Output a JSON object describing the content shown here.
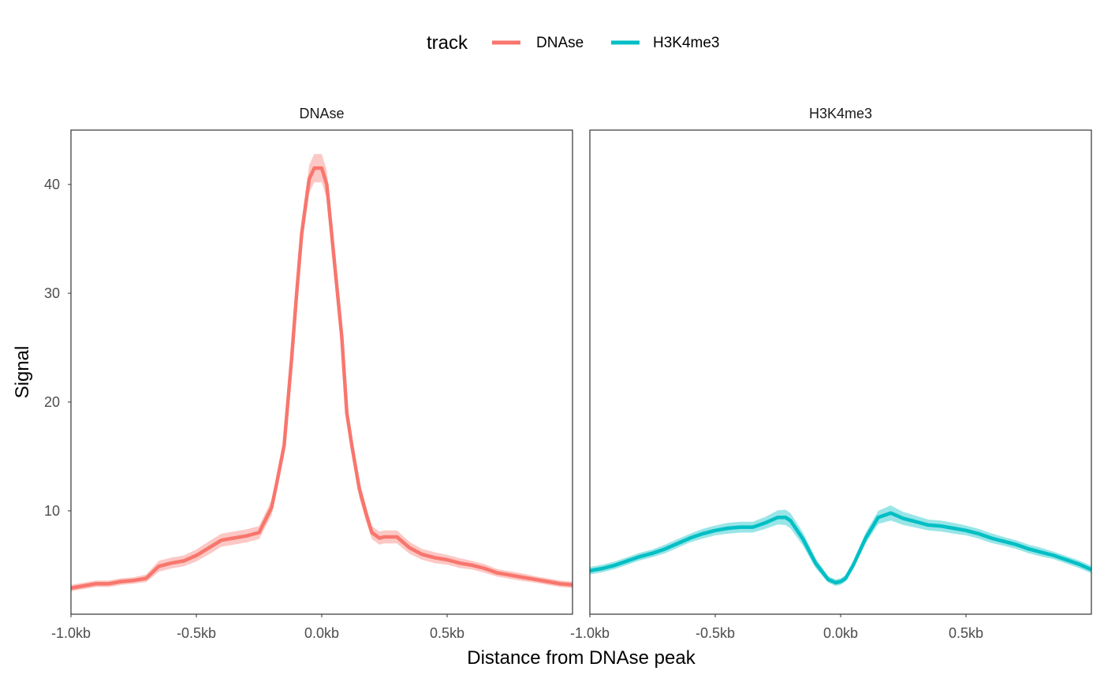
{
  "chart_data": {
    "type": "line",
    "xlabel": "Distance from DNAse peak",
    "ylabel": "Signal",
    "xlim": [
      -1.0,
      1.0
    ],
    "ylim": [
      0.5,
      45
    ],
    "x_ticks": [
      {
        "value": -1.0,
        "label": "-1.0kb"
      },
      {
        "value": -0.5,
        "label": "-0.5kb"
      },
      {
        "value": 0.0,
        "label": "0.0kb"
      },
      {
        "value": 0.5,
        "label": "0.5kb"
      }
    ],
    "y_ticks": [
      {
        "value": 10,
        "label": "10"
      },
      {
        "value": 20,
        "label": "20"
      },
      {
        "value": 30,
        "label": "30"
      },
      {
        "value": 40,
        "label": "40"
      }
    ],
    "legend": {
      "title": "track",
      "placement": "top",
      "entries": [
        {
          "label": "DNAse",
          "color": "#F8766D"
        },
        {
          "label": "H3K4me3",
          "color": "#00BFC4"
        }
      ]
    },
    "grid": false,
    "panels": [
      {
        "strip": "DNAse",
        "color": "#F8766D",
        "band_color": "#F8766D",
        "x": [
          -1.0,
          -0.95,
          -0.9,
          -0.85,
          -0.8,
          -0.75,
          -0.7,
          -0.65,
          -0.6,
          -0.55,
          -0.5,
          -0.45,
          -0.4,
          -0.35,
          -0.3,
          -0.25,
          -0.2,
          -0.18,
          -0.15,
          -0.12,
          -0.1,
          -0.08,
          -0.05,
          -0.03,
          0.0,
          0.02,
          0.05,
          0.08,
          0.1,
          0.12,
          0.15,
          0.18,
          0.2,
          0.23,
          0.25,
          0.3,
          0.35,
          0.4,
          0.45,
          0.5,
          0.55,
          0.6,
          0.65,
          0.7,
          0.75,
          0.8,
          0.85,
          0.9,
          0.95,
          1.0
        ],
        "y": [
          2.9,
          3.1,
          3.3,
          3.3,
          3.5,
          3.6,
          3.8,
          4.9,
          5.2,
          5.4,
          5.9,
          6.6,
          7.3,
          7.5,
          7.7,
          8.0,
          10.3,
          12.5,
          16.0,
          24.0,
          30.0,
          35.5,
          40.5,
          41.5,
          41.5,
          40.0,
          33.0,
          26.0,
          19.0,
          16.0,
          12.0,
          9.5,
          8.0,
          7.5,
          7.6,
          7.6,
          6.6,
          6.0,
          5.7,
          5.5,
          5.2,
          5.0,
          4.7,
          4.3,
          4.1,
          3.9,
          3.7,
          3.5,
          3.3,
          3.2
        ],
        "band_half_width": [
          0.3,
          0.3,
          0.3,
          0.3,
          0.3,
          0.3,
          0.35,
          0.5,
          0.5,
          0.5,
          0.55,
          0.6,
          0.6,
          0.6,
          0.6,
          0.6,
          0.7,
          0.75,
          0.85,
          1.0,
          1.1,
          1.2,
          1.3,
          1.3,
          1.3,
          1.3,
          1.2,
          1.1,
          1.0,
          0.9,
          0.8,
          0.7,
          0.6,
          0.6,
          0.6,
          0.6,
          0.55,
          0.5,
          0.5,
          0.45,
          0.45,
          0.4,
          0.4,
          0.35,
          0.35,
          0.35,
          0.3,
          0.3,
          0.3,
          0.3
        ]
      },
      {
        "strip": "H3K4me3",
        "color": "#00BFC4",
        "band_color": "#00BFC4",
        "x": [
          -1.0,
          -0.95,
          -0.9,
          -0.85,
          -0.8,
          -0.75,
          -0.7,
          -0.65,
          -0.6,
          -0.55,
          -0.5,
          -0.45,
          -0.4,
          -0.35,
          -0.3,
          -0.25,
          -0.22,
          -0.2,
          -0.15,
          -0.1,
          -0.05,
          -0.02,
          0.0,
          0.02,
          0.05,
          0.1,
          0.15,
          0.2,
          0.22,
          0.25,
          0.3,
          0.35,
          0.4,
          0.45,
          0.5,
          0.55,
          0.6,
          0.65,
          0.7,
          0.75,
          0.8,
          0.85,
          0.9,
          0.95,
          1.0
        ],
        "y": [
          4.5,
          4.7,
          5.0,
          5.4,
          5.8,
          6.1,
          6.5,
          7.0,
          7.5,
          7.9,
          8.2,
          8.4,
          8.5,
          8.5,
          8.9,
          9.4,
          9.4,
          9.1,
          7.4,
          5.2,
          3.7,
          3.4,
          3.5,
          3.8,
          5.0,
          7.5,
          9.4,
          9.8,
          9.6,
          9.3,
          9.0,
          8.7,
          8.6,
          8.4,
          8.2,
          7.9,
          7.5,
          7.2,
          6.9,
          6.5,
          6.2,
          5.9,
          5.5,
          5.1,
          4.6
        ],
        "band_half_width": [
          0.35,
          0.35,
          0.35,
          0.35,
          0.35,
          0.35,
          0.4,
          0.4,
          0.4,
          0.45,
          0.45,
          0.5,
          0.5,
          0.5,
          0.55,
          0.65,
          0.7,
          0.7,
          0.6,
          0.45,
          0.3,
          0.3,
          0.3,
          0.3,
          0.35,
          0.5,
          0.6,
          0.7,
          0.65,
          0.6,
          0.55,
          0.5,
          0.5,
          0.5,
          0.45,
          0.45,
          0.45,
          0.4,
          0.4,
          0.4,
          0.4,
          0.35,
          0.35,
          0.35,
          0.35
        ]
      }
    ]
  }
}
